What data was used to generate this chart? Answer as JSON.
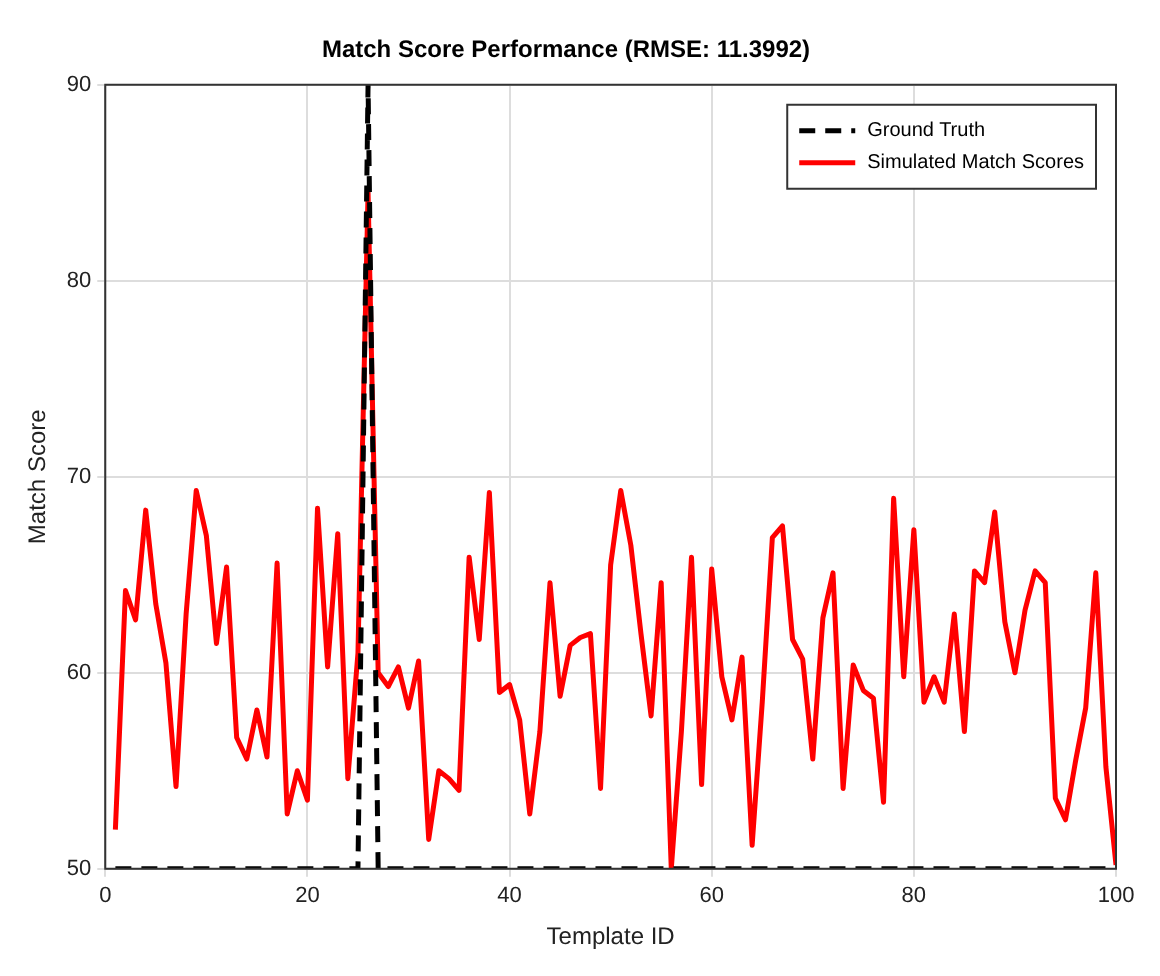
{
  "chart_data": {
    "type": "line",
    "title": "Match Score Performance (RMSE: 11.3992)",
    "xlabel": "Template ID",
    "ylabel": "Match Score",
    "xlim": [
      0,
      100
    ],
    "xticks": [
      0,
      20,
      40,
      60,
      80,
      100
    ],
    "ylim": [
      50,
      90
    ],
    "yticks": [
      50,
      60,
      70,
      80,
      90
    ],
    "grid": true,
    "legend": "top right",
    "marker": "none",
    "series": [
      {
        "name": "Ground Truth",
        "color": "#000000",
        "line_style": "dashed",
        "x": [
          1,
          25,
          26,
          27,
          100
        ],
        "values": [
          50,
          50,
          90,
          50,
          50
        ]
      },
      {
        "name": "Simulated Match Scores",
        "color": "#ff0000",
        "line_style": "solid",
        "x": [
          1,
          2,
          3,
          4,
          5,
          6,
          7,
          8,
          9,
          10,
          11,
          12,
          13,
          14,
          15,
          16,
          17,
          18,
          19,
          20,
          21,
          22,
          23,
          24,
          25,
          26,
          27,
          28,
          29,
          30,
          31,
          32,
          33,
          34,
          35,
          36,
          37,
          38,
          39,
          40,
          41,
          42,
          43,
          44,
          45,
          46,
          47,
          48,
          49,
          50,
          51,
          52,
          53,
          54,
          55,
          56,
          57,
          58,
          59,
          60,
          61,
          62,
          63,
          64,
          65,
          66,
          67,
          68,
          69,
          70,
          71,
          72,
          73,
          74,
          75,
          76,
          77,
          78,
          79,
          80,
          81,
          82,
          83,
          84,
          85,
          86,
          87,
          88,
          89,
          90,
          91,
          92,
          93,
          94,
          95,
          96,
          97,
          98,
          99,
          100
        ],
        "values": [
          52,
          64.2,
          62.7,
          68.3,
          63.5,
          60.5,
          54.2,
          63,
          69.3,
          67,
          61.5,
          65.4,
          56.7,
          55.6,
          58.1,
          55.7,
          65.6,
          52.8,
          55,
          53.5,
          68.4,
          60.3,
          67.1,
          54.6,
          61,
          84.5,
          60,
          59.3,
          60.3,
          58.2,
          60.6,
          51.5,
          55,
          54.6,
          54,
          65.9,
          61.7,
          69.2,
          59,
          59.4,
          57.6,
          52.8,
          57,
          64.6,
          58.8,
          61.4,
          61.8,
          62,
          54.1,
          65.5,
          69.3,
          66.5,
          62,
          57.8,
          64.6,
          50,
          57,
          65.9,
          54.3,
          65.3,
          59.8,
          57.6,
          60.8,
          51.2,
          58.5,
          66.9,
          67.5,
          61.7,
          60.7,
          55.6,
          62.8,
          65.1,
          54.1,
          60.4,
          59.1,
          58.7,
          53.4,
          68.9,
          59.8,
          67.3,
          58.5,
          59.8,
          58.5,
          63,
          57,
          65.2,
          64.6,
          68.2,
          62.6,
          60,
          63.2,
          65.2,
          64.6,
          53.6,
          52.5,
          55.5,
          58.2,
          65.1,
          55.2,
          50.2
        ]
      }
    ]
  }
}
